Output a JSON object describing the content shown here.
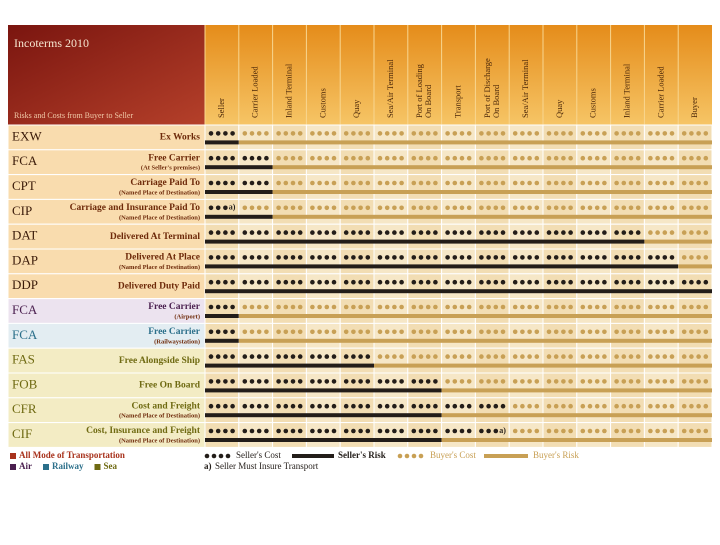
{
  "header": {
    "title": "Incoterms 2010",
    "subtitle": "Risks and Costs from Buyer to Seller"
  },
  "columns": [
    [
      "Seller"
    ],
    [
      "Carrier Loaded"
    ],
    [
      "Inland Terminal"
    ],
    [
      "Customs"
    ],
    [
      "Quay"
    ],
    [
      "Sea/Air Terminal"
    ],
    [
      "Port of Loading",
      "On Board"
    ],
    [
      "Transport"
    ],
    [
      "Port of Discharge",
      "On Board"
    ],
    [
      "Sea/Air Terminal"
    ],
    [
      "Quay"
    ],
    [
      "Customs"
    ],
    [
      "Inland Terminal"
    ],
    [
      "Carrier Loaded"
    ],
    [
      "Buyer"
    ]
  ],
  "modes": [
    {
      "name": "All Mode of Transportation",
      "color": "#a8321c",
      "rows": [
        {
          "code": "EXW",
          "name": "Ex Works",
          "seller_cost_columns": 1,
          "seller_risk_columns": 1
        },
        {
          "code": "FCA",
          "name": "Free Carrier",
          "note": "(At Seller's premises)",
          "seller_cost_columns": 2,
          "seller_risk_columns": 2
        },
        {
          "code": "CPT",
          "name": "Carriage Paid To",
          "note": "(Named Place of Destination)",
          "seller_cost_columns": 2,
          "seller_risk_columns": 2
        },
        {
          "code": "CIP",
          "name": "Carriage and Insurance Paid To",
          "note": "(Named Place of Destination)",
          "seller_cost_columns": 1,
          "seller_risk_columns": 2,
          "annotation": "a)"
        },
        {
          "code": "DAT",
          "name": "Delivered At Terminal",
          "seller_cost_columns": 13,
          "seller_risk_columns": 13
        },
        {
          "code": "DAP",
          "name": "Delivered At Place",
          "note": "(Named Place of Destination)",
          "seller_cost_columns": 14,
          "seller_risk_columns": 14
        },
        {
          "code": "DDP",
          "name": "Delivered Duty Paid",
          "seller_cost_columns": 15,
          "seller_risk_columns": 15
        }
      ]
    },
    {
      "name": "Air",
      "color": "#4a1f4f",
      "rows": [
        {
          "code": "FCA",
          "name": "Free Carrier",
          "note": "(Airport)",
          "seller_cost_columns": 1,
          "seller_risk_columns": 1
        }
      ]
    },
    {
      "name": "Railway",
      "color": "#2b6f8a",
      "rows": [
        {
          "code": "FCA",
          "name": "Free Carrier",
          "note": "(Railwaystation)",
          "seller_cost_columns": 1,
          "seller_risk_columns": 1
        }
      ]
    },
    {
      "name": "Sea",
      "color": "#6f6a12",
      "rows": [
        {
          "code": "FAS",
          "name": "Free Alongside Ship",
          "seller_cost_columns": 5,
          "seller_risk_columns": 5
        },
        {
          "code": "FOB",
          "name": "Free On Board",
          "seller_cost_columns": 7,
          "seller_risk_columns": 7
        },
        {
          "code": "CFR",
          "name": "Cost and Freight",
          "note": "(Named Place of Destination)",
          "seller_cost_columns": 9,
          "seller_risk_columns": 7
        },
        {
          "code": "CIF",
          "name": "Cost, Insurance and Freight",
          "note": "(Named Place of Destination)",
          "seller_cost_columns": 9,
          "seller_risk_columns": 7,
          "annotation": "a)"
        }
      ]
    }
  ],
  "legend": {
    "seller_cost": "Seller's Cost",
    "seller_risk": "Seller's Risk",
    "buyer_cost": "Buyer's Cost",
    "buyer_risk": "Buyer's Risk",
    "seller_color": "#231d19",
    "buyer_color": "#c8a055",
    "footnote": "a)",
    "footnote_text": "Seller Must Insure Transport"
  }
}
